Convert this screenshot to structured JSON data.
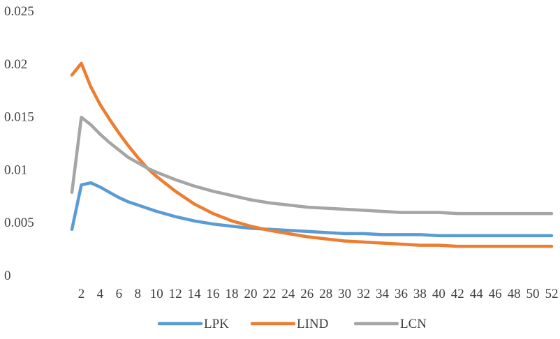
{
  "chart_data": {
    "type": "line",
    "title": "",
    "xlabel": "",
    "ylabel": "",
    "ylim": [
      0,
      0.025
    ],
    "yticks": [
      0,
      0.005,
      0.01,
      0.015,
      0.02,
      0.025
    ],
    "ytick_labels": [
      "0",
      "0.005",
      "0.01",
      "0.015",
      "0.02",
      "0.025"
    ],
    "xlim": [
      1,
      52
    ],
    "xticks": [
      2,
      4,
      6,
      8,
      10,
      12,
      14,
      16,
      18,
      20,
      22,
      24,
      26,
      28,
      30,
      32,
      34,
      36,
      38,
      40,
      42,
      44,
      46,
      48,
      50,
      52
    ],
    "grid": false,
    "legend_position": "bottom",
    "series": [
      {
        "name": "LPK",
        "color": "#5b9bd5",
        "x": [
          1,
          2,
          3,
          4,
          5,
          6,
          7,
          8,
          9,
          10,
          12,
          14,
          16,
          18,
          20,
          22,
          24,
          26,
          28,
          30,
          32,
          34,
          36,
          38,
          40,
          42,
          44,
          46,
          48,
          50,
          52
        ],
        "values": [
          0.0043,
          0.0085,
          0.0087,
          0.0083,
          0.0078,
          0.0073,
          0.0069,
          0.0066,
          0.0063,
          0.006,
          0.0055,
          0.0051,
          0.0048,
          0.0046,
          0.0044,
          0.0043,
          0.0042,
          0.0041,
          0.004,
          0.0039,
          0.0039,
          0.0038,
          0.0038,
          0.0038,
          0.0037,
          0.0037,
          0.0037,
          0.0037,
          0.0037,
          0.0037,
          0.0037
        ]
      },
      {
        "name": "LIND",
        "color": "#ed7d31",
        "x": [
          1,
          2,
          3,
          4,
          5,
          6,
          7,
          8,
          9,
          10,
          12,
          14,
          16,
          18,
          20,
          22,
          24,
          26,
          28,
          30,
          32,
          34,
          36,
          38,
          40,
          42,
          44,
          46,
          48,
          50,
          52
        ],
        "values": [
          0.0189,
          0.02,
          0.0178,
          0.0161,
          0.0147,
          0.0134,
          0.0122,
          0.0111,
          0.0101,
          0.0093,
          0.0079,
          0.0067,
          0.0058,
          0.0051,
          0.0046,
          0.0042,
          0.0039,
          0.0036,
          0.0034,
          0.0032,
          0.0031,
          0.003,
          0.0029,
          0.0028,
          0.0028,
          0.0027,
          0.0027,
          0.0027,
          0.0027,
          0.0027,
          0.0027
        ]
      },
      {
        "name": "LCN",
        "color": "#a5a5a5",
        "x": [
          1,
          2,
          3,
          4,
          5,
          6,
          7,
          8,
          9,
          10,
          12,
          14,
          16,
          18,
          20,
          22,
          24,
          26,
          28,
          30,
          32,
          34,
          36,
          38,
          40,
          42,
          44,
          46,
          48,
          50,
          52
        ],
        "values": [
          0.0078,
          0.0149,
          0.0142,
          0.0133,
          0.0125,
          0.0118,
          0.0111,
          0.0106,
          0.0101,
          0.0097,
          0.009,
          0.0084,
          0.0079,
          0.0075,
          0.0071,
          0.0068,
          0.0066,
          0.0064,
          0.0063,
          0.0062,
          0.0061,
          0.006,
          0.0059,
          0.0059,
          0.0059,
          0.0058,
          0.0058,
          0.0058,
          0.0058,
          0.0058,
          0.0058
        ]
      }
    ]
  }
}
